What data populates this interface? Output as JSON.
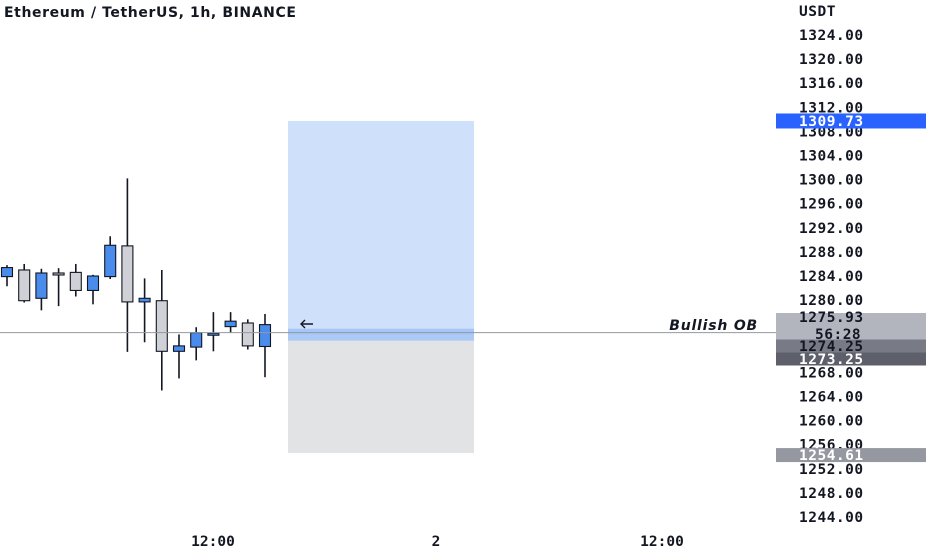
{
  "header": {
    "title": "Ethereum / TetherUS, 1h, BINANCE"
  },
  "price_axis": {
    "currency_label": "USDT",
    "ticks": [
      "1324.00",
      "1320.00",
      "1316.00",
      "1312.00",
      "1308.00",
      "1304.00",
      "1300.00",
      "1296.00",
      "1292.00",
      "1288.00",
      "1284.00",
      "1280.00",
      "1268.00",
      "1264.00",
      "1260.00",
      "1256.00",
      "1252.00",
      "1248.00",
      "1244.00"
    ]
  },
  "time_axis": {
    "ticks": [
      "12:00",
      "2",
      "12:00"
    ]
  },
  "price_tags": {
    "target": {
      "label": "1309.73",
      "value": 1309.73,
      "color": "#2962ff"
    },
    "last_price": {
      "label": "1275.93",
      "value": 1275.93,
      "countdown": "56:28",
      "color": "#b2b5be"
    },
    "ob_high": {
      "label": "1274.25",
      "value": 1274.25,
      "color": "#787b86"
    },
    "ob_low": {
      "label": "1273.25",
      "value": 1273.25,
      "color": "#5d606b"
    },
    "stop": {
      "label": "1254.61",
      "value": 1254.61,
      "color": "#9598a1"
    }
  },
  "annotations": {
    "bullish_ob": "Bullish OB"
  },
  "colors": {
    "up_candle": "#4a8cec",
    "down_candle": "#cfd1d6",
    "wick": "#131722",
    "profit_zone": "#cfe0fa",
    "loss_zone": "#e2e3e5",
    "price_line": "#9598a1",
    "ob_zone": "#9ec1f4"
  },
  "chart_data": {
    "type": "candlestick",
    "title": "Ethereum / TetherUS, 1h, BINANCE",
    "y_unit": "USDT",
    "ylim": [
      1242,
      1327
    ],
    "x_ticks": [
      "12:00",
      "2",
      "12:00"
    ],
    "grid": false,
    "candles": [
      {
        "open": 1283.9,
        "high": 1285.8,
        "low": 1282.3,
        "close": 1285.4
      },
      {
        "open": 1285.0,
        "high": 1286.0,
        "low": 1279.6,
        "close": 1279.9
      },
      {
        "open": 1280.3,
        "high": 1285.2,
        "low": 1278.3,
        "close": 1284.5
      },
      {
        "open": 1284.5,
        "high": 1285.3,
        "low": 1279.0,
        "close": 1284.3
      },
      {
        "open": 1284.6,
        "high": 1286.0,
        "low": 1280.6,
        "close": 1281.6
      },
      {
        "open": 1281.6,
        "high": 1284.2,
        "low": 1279.3,
        "close": 1284.0
      },
      {
        "open": 1283.9,
        "high": 1290.6,
        "low": 1283.5,
        "close": 1289.1
      },
      {
        "open": 1289.0,
        "high": 1300.2,
        "low": 1271.4,
        "close": 1279.7
      },
      {
        "open": 1279.7,
        "high": 1283.6,
        "low": 1273.0,
        "close": 1280.3
      },
      {
        "open": 1279.9,
        "high": 1285.0,
        "low": 1265.0,
        "close": 1271.5
      },
      {
        "open": 1271.5,
        "high": 1274.3,
        "low": 1267.0,
        "close": 1272.4
      },
      {
        "open": 1272.2,
        "high": 1275.5,
        "low": 1270.0,
        "close": 1274.6
      },
      {
        "open": 1274.5,
        "high": 1278.0,
        "low": 1271.5,
        "close": 1274.5
      },
      {
        "open": 1275.6,
        "high": 1278.0,
        "low": 1274.6,
        "close": 1276.5
      },
      {
        "open": 1276.2,
        "high": 1276.8,
        "low": 1271.8,
        "close": 1272.4
      },
      {
        "open": 1272.3,
        "high": 1277.7,
        "low": 1267.2,
        "close": 1275.93
      }
    ],
    "position": {
      "entry_zone_high": 1274.25,
      "entry_zone_low": 1273.25,
      "target": 1309.73,
      "stop": 1254.61,
      "label": "Bullish OB"
    },
    "last_price": 1275.93
  }
}
